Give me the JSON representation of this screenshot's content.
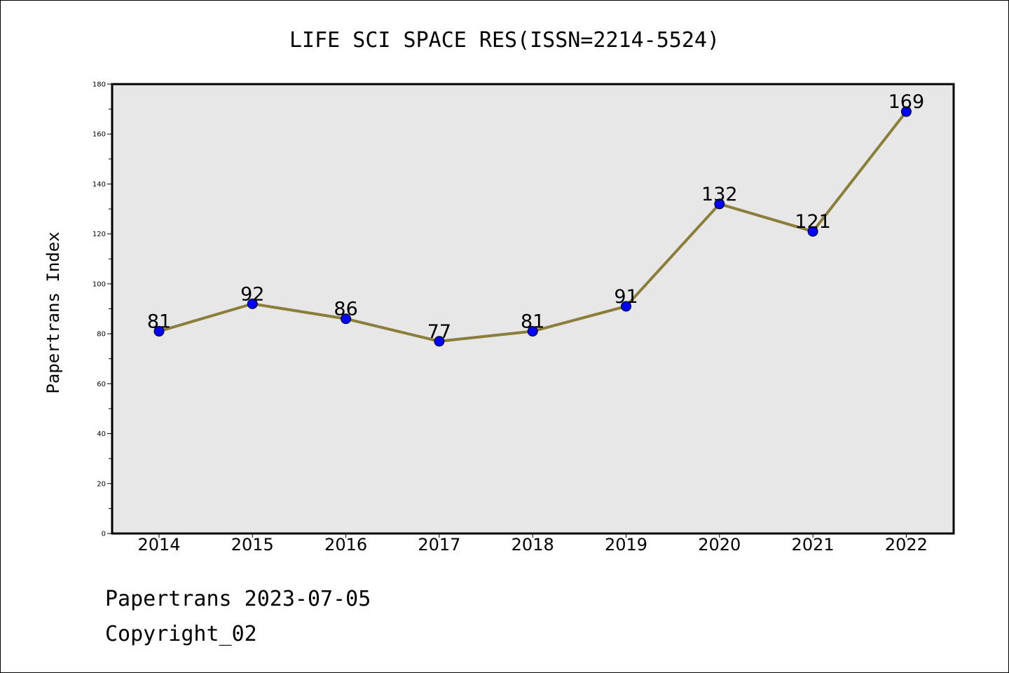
{
  "chart_data": {
    "type": "line",
    "title": "LIFE SCI SPACE RES(ISSN=2214-5524)",
    "xlabel": "",
    "ylabel": "Papertrans Index",
    "categories": [
      "2014",
      "2015",
      "2016",
      "2017",
      "2018",
      "2019",
      "2020",
      "2021",
      "2022"
    ],
    "series": [
      {
        "values": [
          81,
          92,
          86,
          77,
          81,
          91,
          132,
          121,
          169
        ],
        "data_labels": [
          "81",
          "92",
          "86",
          "77",
          "81",
          "91",
          "132",
          "121",
          "169"
        ]
      }
    ],
    "ylim": [
      0,
      180
    ],
    "y_ticks": [
      "0",
      "20",
      "40",
      "60",
      "80",
      "100",
      "120",
      "140",
      "160",
      "180"
    ],
    "grid": false,
    "legend": "none",
    "colors": {
      "line": "#8b7d3a",
      "marker": "#0000ff",
      "plot_background": "#e7e7e7"
    }
  },
  "footer": {
    "line1": "Papertrans 2023-07-05",
    "line2": "Copyright_02"
  }
}
